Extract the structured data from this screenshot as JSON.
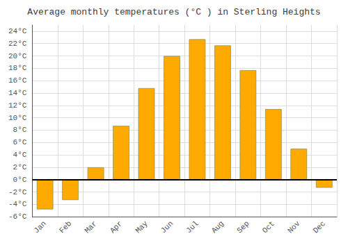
{
  "chart_data": {
    "type": "bar",
    "title": "Average monthly temperatures (°C ) in Sterling Heights",
    "categories": [
      "Jan",
      "Feb",
      "Mar",
      "Apr",
      "May",
      "Jun",
      "Jul",
      "Aug",
      "Sep",
      "Oct",
      "Nov",
      "Dec"
    ],
    "values": [
      -4.8,
      -3.3,
      2.0,
      8.7,
      14.8,
      20.0,
      22.7,
      21.7,
      17.7,
      11.4,
      5.0,
      -1.3
    ],
    "color": "#FFAA00",
    "ylim": [
      -6,
      25
    ],
    "yticks": [
      {
        "value": -6,
        "label": "-6°C"
      },
      {
        "value": -4,
        "label": "-4°C"
      },
      {
        "value": -2,
        "label": "-2°C"
      },
      {
        "value": 0,
        "label": "0°C"
      },
      {
        "value": 2,
        "label": "2°C"
      },
      {
        "value": 4,
        "label": "4°C"
      },
      {
        "value": 6,
        "label": "6°C"
      },
      {
        "value": 8,
        "label": "8°C"
      },
      {
        "value": 10,
        "label": "10°C"
      },
      {
        "value": 12,
        "label": "12°C"
      },
      {
        "value": 14,
        "label": "14°C"
      },
      {
        "value": 16,
        "label": "16°C"
      },
      {
        "value": 18,
        "label": "18°C"
      },
      {
        "value": 20,
        "label": "20°C"
      },
      {
        "value": 22,
        "label": "22°C"
      },
      {
        "value": 24,
        "label": "24°C"
      }
    ],
    "grid": true
  }
}
